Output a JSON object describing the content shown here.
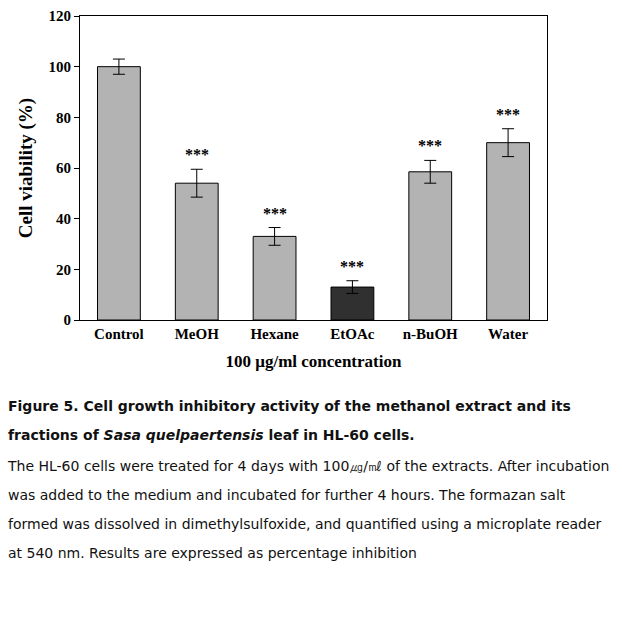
{
  "chart_data": {
    "type": "bar",
    "categories": [
      "Control",
      "MeOH",
      "Hexane",
      "EtOAc",
      "n-BuOH",
      "Water"
    ],
    "values": [
      100,
      54,
      33,
      13,
      58.5,
      70
    ],
    "errors": [
      3,
      5.5,
      3.5,
      2.5,
      4.5,
      5.5
    ],
    "colors": [
      "#b3b3b3",
      "#b3b3b3",
      "#b3b3b3",
      "#303030",
      "#b3b3b3",
      "#b3b3b3"
    ],
    "y_label": "Cell viability (%)",
    "x_label": "100 μg/ml concentration",
    "ylim": [
      0,
      120
    ],
    "yticks": [
      0,
      20,
      40,
      60,
      80,
      100,
      120
    ],
    "grid": false,
    "annotations": [
      {
        "category": "MeOH",
        "text": "***"
      },
      {
        "category": "Hexane",
        "text": "***"
      },
      {
        "category": "EtOAc",
        "text": "***"
      },
      {
        "category": "n-BuOH",
        "text": "***"
      },
      {
        "category": "Water",
        "text": "***"
      }
    ]
  },
  "caption": {
    "title": [
      "Figure 5. Cell growth inhibitory activity of the methanol extract and its fractions of ",
      "Sasa quelpaertensis",
      " leaf in HL-60 cells."
    ],
    "description": "The HL-60 cells were treated for 4 days with 100㎍/㎖ of the extracts. After incubation was added to the medium and incubated for further 4 hours. The formazan salt formed was dissolved in dimethylsulfoxide, and quantified using a microplate reader at 540 nm. Results are expressed as percentage inhibition"
  }
}
